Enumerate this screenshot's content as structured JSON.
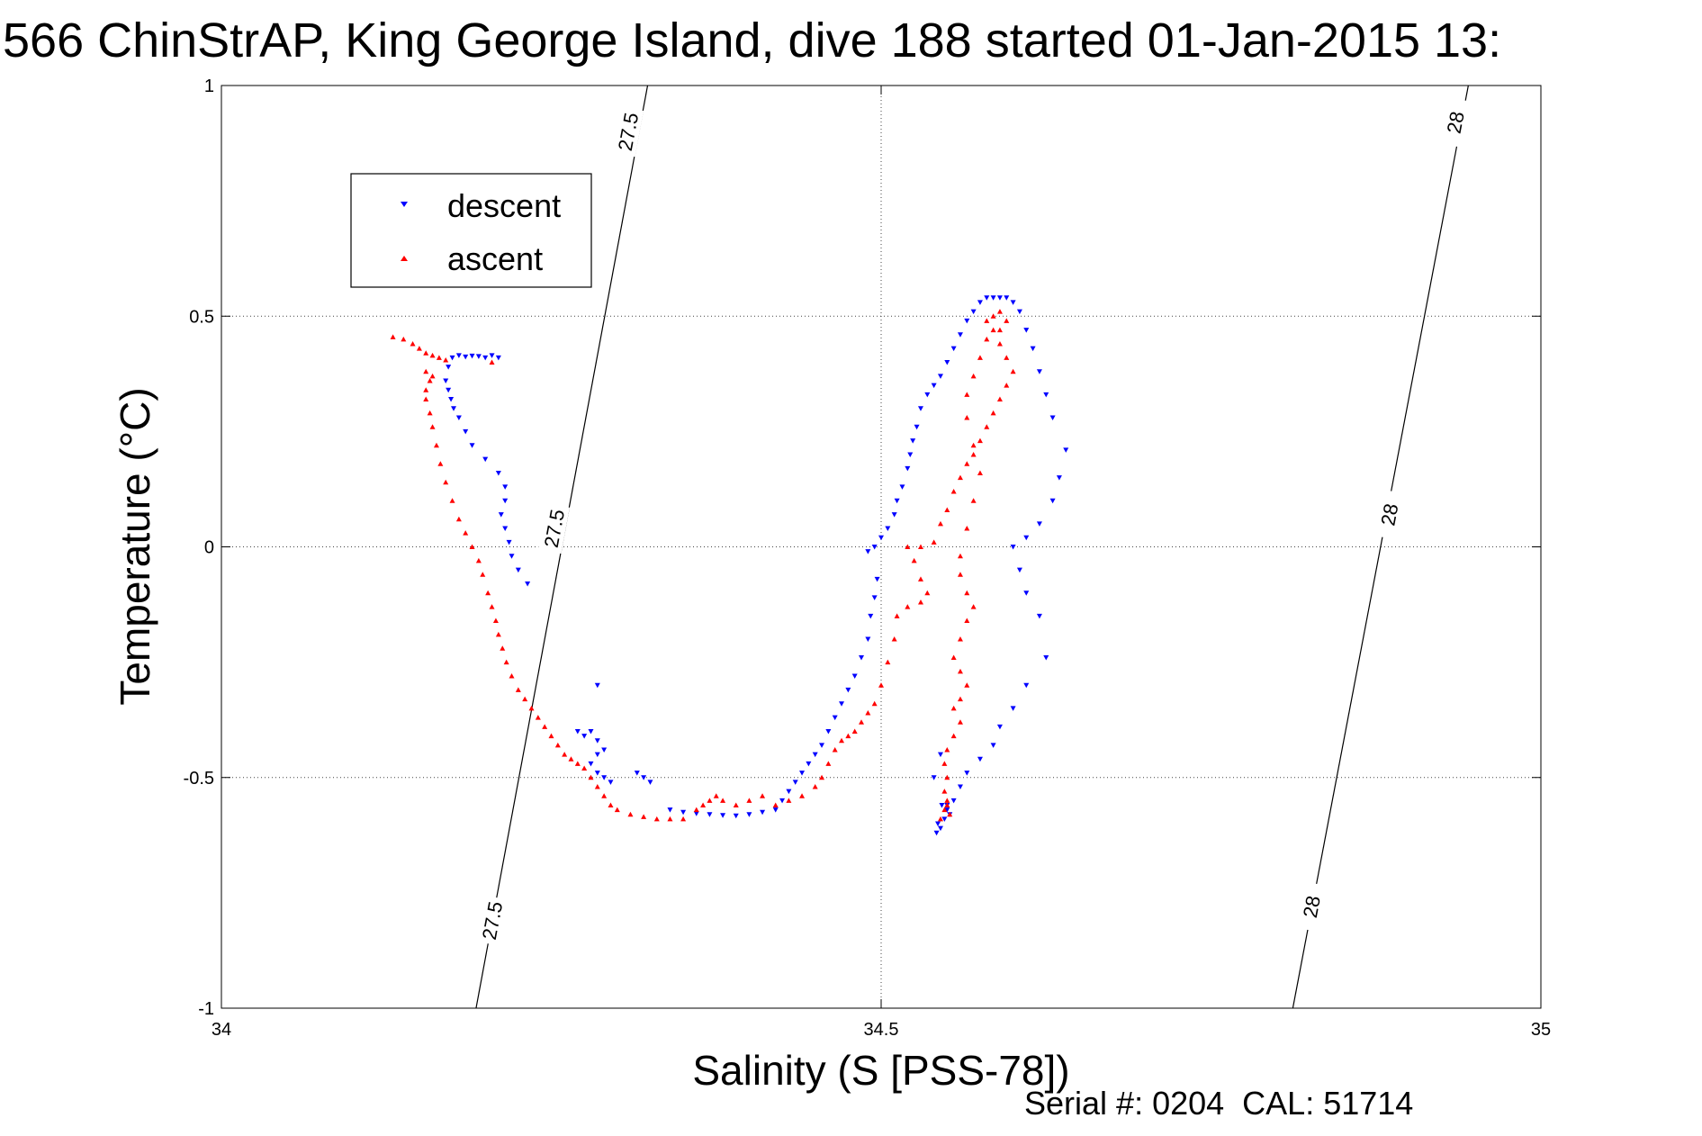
{
  "chart_data": {
    "type": "scatter",
    "title": "566 ChinStrAP, King George Island, dive 188 started 01-Jan-2015 13:",
    "xlabel": "Salinity (S [PSS-78])",
    "ylabel": "Temperature (°C)",
    "xlim": [
      34,
      35
    ],
    "ylim": [
      -1,
      1
    ],
    "xticks": [
      34,
      34.5,
      35
    ],
    "xtick_labels": [
      "34",
      "34.5",
      "35"
    ],
    "yticks": [
      -1,
      -0.5,
      0,
      0.5,
      1
    ],
    "ytick_labels": [
      "-1",
      "-0.5",
      "0",
      "0.5",
      "1"
    ],
    "grid": true,
    "legend_position": "top-left",
    "footer": "Serial #: 0204  CAL: 51714",
    "isopycnals": [
      {
        "label": "27.5",
        "s_bottom": 34.193,
        "s_top": 34.323,
        "label_points": [
          [
            34.308,
            0.9
          ],
          [
            34.252,
            0.04
          ],
          [
            34.205,
            -0.81
          ]
        ]
      },
      {
        "label": "28",
        "s_bottom": 34.812,
        "s_top": 34.945,
        "label_points": [
          [
            34.935,
            0.92
          ],
          [
            34.885,
            0.07
          ],
          [
            34.826,
            -0.78
          ]
        ]
      }
    ],
    "series": [
      {
        "name": "descent",
        "color": "#0000ff",
        "marker": "triangle-down",
        "points": [
          [
            34.175,
            0.41
          ],
          [
            34.18,
            0.415
          ],
          [
            34.185,
            0.412
          ],
          [
            34.19,
            0.414
          ],
          [
            34.195,
            0.413
          ],
          [
            34.2,
            0.41
          ],
          [
            34.205,
            0.415
          ],
          [
            34.21,
            0.41
          ],
          [
            34.172,
            0.39
          ],
          [
            34.17,
            0.36
          ],
          [
            34.172,
            0.34
          ],
          [
            34.174,
            0.32
          ],
          [
            34.176,
            0.3
          ],
          [
            34.18,
            0.28
          ],
          [
            34.185,
            0.25
          ],
          [
            34.19,
            0.22
          ],
          [
            34.2,
            0.19
          ],
          [
            34.21,
            0.16
          ],
          [
            34.215,
            0.13
          ],
          [
            34.215,
            0.1
          ],
          [
            34.212,
            0.07
          ],
          [
            34.215,
            0.04
          ],
          [
            34.218,
            0.01
          ],
          [
            34.22,
            -0.02
          ],
          [
            34.225,
            -0.05
          ],
          [
            34.232,
            -0.08
          ],
          [
            34.27,
            -0.4
          ],
          [
            34.275,
            -0.41
          ],
          [
            34.28,
            -0.4
          ],
          [
            34.285,
            -0.42
          ],
          [
            34.29,
            -0.44
          ],
          [
            34.285,
            -0.45
          ],
          [
            34.28,
            -0.47
          ],
          [
            34.285,
            -0.49
          ],
          [
            34.29,
            -0.5
          ],
          [
            34.295,
            -0.51
          ],
          [
            34.285,
            -0.3
          ],
          [
            34.32,
            -0.5
          ],
          [
            34.325,
            -0.51
          ],
          [
            34.315,
            -0.49
          ],
          [
            34.34,
            -0.57
          ],
          [
            34.35,
            -0.575
          ],
          [
            34.36,
            -0.578
          ],
          [
            34.37,
            -0.58
          ],
          [
            34.38,
            -0.582
          ],
          [
            34.39,
            -0.583
          ],
          [
            34.4,
            -0.58
          ],
          [
            34.41,
            -0.575
          ],
          [
            34.42,
            -0.57
          ],
          [
            34.425,
            -0.55
          ],
          [
            34.43,
            -0.53
          ],
          [
            34.435,
            -0.51
          ],
          [
            34.44,
            -0.49
          ],
          [
            34.445,
            -0.47
          ],
          [
            34.45,
            -0.45
          ],
          [
            34.455,
            -0.43
          ],
          [
            34.46,
            -0.4
          ],
          [
            34.465,
            -0.37
          ],
          [
            34.47,
            -0.34
          ],
          [
            34.475,
            -0.31
          ],
          [
            34.48,
            -0.28
          ],
          [
            34.485,
            -0.24
          ],
          [
            34.49,
            -0.2
          ],
          [
            34.492,
            -0.15
          ],
          [
            34.495,
            -0.11
          ],
          [
            34.497,
            -0.07
          ],
          [
            34.49,
            -0.01
          ],
          [
            34.495,
            0.0
          ],
          [
            34.5,
            0.02
          ],
          [
            34.505,
            0.04
          ],
          [
            34.51,
            0.07
          ],
          [
            34.512,
            0.1
          ],
          [
            34.516,
            0.13
          ],
          [
            34.52,
            0.17
          ],
          [
            34.522,
            0.2
          ],
          [
            34.524,
            0.23
          ],
          [
            34.527,
            0.26
          ],
          [
            34.53,
            0.3
          ],
          [
            34.535,
            0.33
          ],
          [
            34.54,
            0.35
          ],
          [
            34.545,
            0.37
          ],
          [
            34.55,
            0.4
          ],
          [
            34.555,
            0.43
          ],
          [
            34.56,
            0.46
          ],
          [
            34.565,
            0.49
          ],
          [
            34.57,
            0.51
          ],
          [
            34.575,
            0.53
          ],
          [
            34.58,
            0.54
          ],
          [
            34.585,
            0.54
          ],
          [
            34.59,
            0.54
          ],
          [
            34.595,
            0.54
          ],
          [
            34.6,
            0.53
          ],
          [
            34.605,
            0.51
          ],
          [
            34.61,
            0.47
          ],
          [
            34.615,
            0.43
          ],
          [
            34.62,
            0.38
          ],
          [
            34.625,
            0.33
          ],
          [
            34.63,
            0.28
          ],
          [
            34.64,
            0.21
          ],
          [
            34.635,
            0.15
          ],
          [
            34.63,
            0.1
          ],
          [
            34.62,
            0.05
          ],
          [
            34.61,
            0.02
          ],
          [
            34.6,
            0.0
          ],
          [
            34.605,
            -0.05
          ],
          [
            34.61,
            -0.1
          ],
          [
            34.62,
            -0.15
          ],
          [
            34.625,
            -0.24
          ],
          [
            34.61,
            -0.3
          ],
          [
            34.6,
            -0.35
          ],
          [
            34.59,
            -0.39
          ],
          [
            34.585,
            -0.43
          ],
          [
            34.575,
            -0.46
          ],
          [
            34.565,
            -0.49
          ],
          [
            34.56,
            -0.52
          ],
          [
            34.555,
            -0.55
          ],
          [
            34.55,
            -0.57
          ],
          [
            34.548,
            -0.59
          ],
          [
            34.545,
            -0.61
          ],
          [
            34.542,
            -0.62
          ],
          [
            34.54,
            -0.5
          ],
          [
            34.545,
            -0.45
          ],
          [
            34.55,
            -0.56
          ],
          [
            34.552,
            -0.58
          ],
          [
            34.546,
            -0.56
          ],
          [
            34.543,
            -0.6
          ]
        ]
      },
      {
        "name": "ascent",
        "color": "#ff0000",
        "marker": "triangle-up",
        "points": [
          [
            34.13,
            0.455
          ],
          [
            34.138,
            0.45
          ],
          [
            34.145,
            0.44
          ],
          [
            34.15,
            0.43
          ],
          [
            34.155,
            0.42
          ],
          [
            34.16,
            0.415
          ],
          [
            34.165,
            0.41
          ],
          [
            34.17,
            0.405
          ],
          [
            34.205,
            0.4
          ],
          [
            34.155,
            0.38
          ],
          [
            34.16,
            0.37
          ],
          [
            34.158,
            0.36
          ],
          [
            34.155,
            0.34
          ],
          [
            34.155,
            0.32
          ],
          [
            34.158,
            0.29
          ],
          [
            34.16,
            0.26
          ],
          [
            34.163,
            0.22
          ],
          [
            34.166,
            0.18
          ],
          [
            34.17,
            0.14
          ],
          [
            34.175,
            0.1
          ],
          [
            34.18,
            0.06
          ],
          [
            34.185,
            0.03
          ],
          [
            34.19,
            0.0
          ],
          [
            34.195,
            -0.03
          ],
          [
            34.198,
            -0.06
          ],
          [
            34.202,
            -0.1
          ],
          [
            34.205,
            -0.13
          ],
          [
            34.208,
            -0.16
          ],
          [
            34.21,
            -0.19
          ],
          [
            34.213,
            -0.22
          ],
          [
            34.216,
            -0.25
          ],
          [
            34.22,
            -0.28
          ],
          [
            34.225,
            -0.31
          ],
          [
            34.23,
            -0.33
          ],
          [
            34.235,
            -0.35
          ],
          [
            34.24,
            -0.37
          ],
          [
            34.245,
            -0.39
          ],
          [
            34.25,
            -0.41
          ],
          [
            34.255,
            -0.43
          ],
          [
            34.26,
            -0.45
          ],
          [
            34.265,
            -0.46
          ],
          [
            34.27,
            -0.47
          ],
          [
            34.275,
            -0.48
          ],
          [
            34.28,
            -0.5
          ],
          [
            34.285,
            -0.52
          ],
          [
            34.29,
            -0.54
          ],
          [
            34.295,
            -0.56
          ],
          [
            34.3,
            -0.57
          ],
          [
            34.31,
            -0.58
          ],
          [
            34.32,
            -0.585
          ],
          [
            34.33,
            -0.59
          ],
          [
            34.34,
            -0.59
          ],
          [
            34.35,
            -0.59
          ],
          [
            34.36,
            -0.57
          ],
          [
            34.365,
            -0.56
          ],
          [
            34.37,
            -0.55
          ],
          [
            34.375,
            -0.54
          ],
          [
            34.38,
            -0.55
          ],
          [
            34.39,
            -0.56
          ],
          [
            34.4,
            -0.55
          ],
          [
            34.41,
            -0.54
          ],
          [
            34.42,
            -0.56
          ],
          [
            34.43,
            -0.55
          ],
          [
            34.44,
            -0.54
          ],
          [
            34.45,
            -0.52
          ],
          [
            34.455,
            -0.5
          ],
          [
            34.46,
            -0.47
          ],
          [
            34.465,
            -0.44
          ],
          [
            34.47,
            -0.42
          ],
          [
            34.475,
            -0.41
          ],
          [
            34.48,
            -0.4
          ],
          [
            34.485,
            -0.38
          ],
          [
            34.49,
            -0.36
          ],
          [
            34.495,
            -0.34
          ],
          [
            34.5,
            -0.3
          ],
          [
            34.505,
            -0.25
          ],
          [
            34.51,
            -0.2
          ],
          [
            34.512,
            -0.15
          ],
          [
            34.52,
            -0.13
          ],
          [
            34.53,
            -0.12
          ],
          [
            34.535,
            -0.1
          ],
          [
            34.53,
            -0.07
          ],
          [
            34.525,
            -0.03
          ],
          [
            34.52,
            0.0
          ],
          [
            34.53,
            0.0
          ],
          [
            34.54,
            0.01
          ],
          [
            34.545,
            0.05
          ],
          [
            34.55,
            0.08
          ],
          [
            34.555,
            0.12
          ],
          [
            34.56,
            0.15
          ],
          [
            34.565,
            0.18
          ],
          [
            34.57,
            0.2
          ],
          [
            34.575,
            0.23
          ],
          [
            34.58,
            0.26
          ],
          [
            34.585,
            0.29
          ],
          [
            34.59,
            0.32
          ],
          [
            34.595,
            0.35
          ],
          [
            34.6,
            0.38
          ],
          [
            34.595,
            0.41
          ],
          [
            34.59,
            0.44
          ],
          [
            34.585,
            0.47
          ],
          [
            34.58,
            0.49
          ],
          [
            34.585,
            0.5
          ],
          [
            34.59,
            0.51
          ],
          [
            34.595,
            0.49
          ],
          [
            34.59,
            0.47
          ],
          [
            34.58,
            0.45
          ],
          [
            34.575,
            0.41
          ],
          [
            34.57,
            0.37
          ],
          [
            34.565,
            0.33
          ],
          [
            34.565,
            0.28
          ],
          [
            34.57,
            0.22
          ],
          [
            34.575,
            0.16
          ],
          [
            34.57,
            0.1
          ],
          [
            34.565,
            0.04
          ],
          [
            34.56,
            -0.02
          ],
          [
            34.56,
            -0.06
          ],
          [
            34.565,
            -0.1
          ],
          [
            34.57,
            -0.13
          ],
          [
            34.565,
            -0.16
          ],
          [
            34.56,
            -0.2
          ],
          [
            34.555,
            -0.24
          ],
          [
            34.56,
            -0.27
          ],
          [
            34.565,
            -0.3
          ],
          [
            34.56,
            -0.33
          ],
          [
            34.555,
            -0.35
          ],
          [
            34.56,
            -0.38
          ],
          [
            34.555,
            -0.41
          ],
          [
            34.55,
            -0.44
          ],
          [
            34.548,
            -0.47
          ],
          [
            34.55,
            -0.5
          ],
          [
            34.548,
            -0.53
          ],
          [
            34.55,
            -0.55
          ],
          [
            34.548,
            -0.57
          ],
          [
            34.552,
            -0.58
          ],
          [
            34.545,
            -0.59
          ],
          [
            34.55,
            -0.56
          ]
        ]
      }
    ]
  }
}
